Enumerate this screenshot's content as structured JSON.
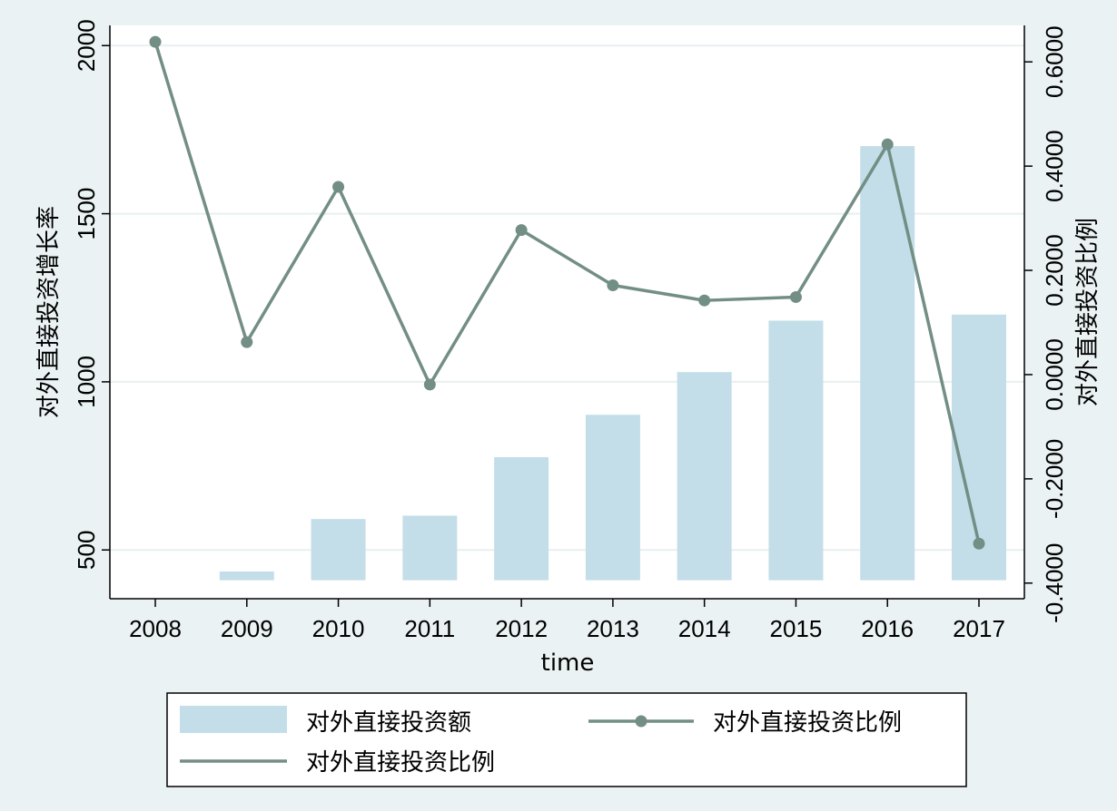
{
  "chart_data": {
    "type": "bar",
    "categories": [
      "2008",
      "2009",
      "2010",
      "2011",
      "2012",
      "2013",
      "2014",
      "2015",
      "2016",
      "2017"
    ],
    "xlabel": "time",
    "ylabel": "对外直接投资增长率",
    "ylabel_right": "对外直接投资比例",
    "ylim": [
      355,
      2060
    ],
    "ylim_right": [
      -0.43,
      0.67
    ],
    "yticks": [
      "500",
      "1000",
      "1500",
      "2000"
    ],
    "yticks_right": [
      "-0.4000",
      "-0.2000",
      "0.0000",
      "0.2000",
      "0.4000",
      "0.6000"
    ],
    "grid": true,
    "series": [
      {
        "name": "对外直接投资额",
        "type": "bar",
        "axis": "left",
        "color": "#c3dee8",
        "values": [
          null,
          436,
          592,
          602,
          776,
          902,
          1029,
          1182,
          1701,
          1200
        ]
      },
      {
        "name": "对外直接投资比例",
        "type": "line",
        "axis": "right",
        "color": "#738e85",
        "values": [
          0.6385,
          0.0623,
          0.3602,
          -0.0191,
          0.2773,
          0.1714,
          0.1423,
          0.1488,
          0.4417,
          -0.3243
        ]
      }
    ],
    "legend": {
      "position": "bottom",
      "entries": [
        "对外直接投资额",
        "对外直接投资比例",
        "对外直接投资比例"
      ]
    },
    "bar_base": 410
  }
}
